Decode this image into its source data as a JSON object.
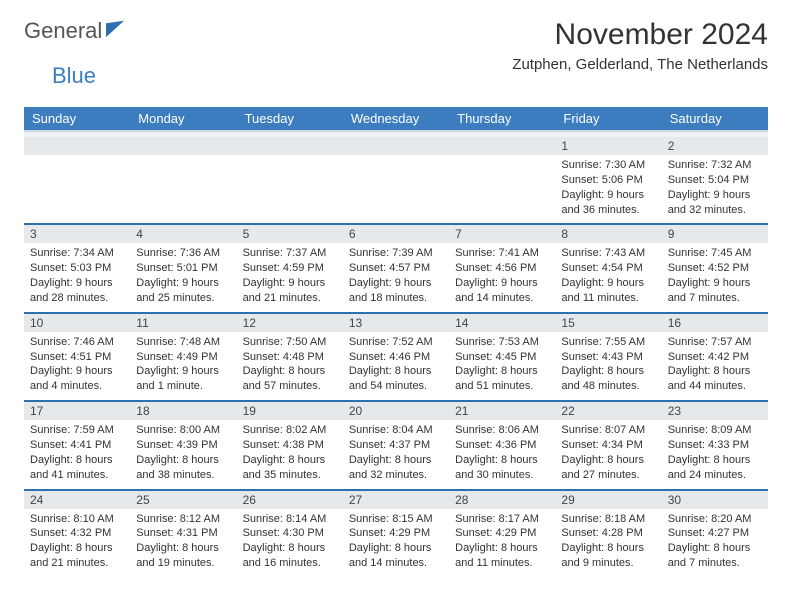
{
  "brand": {
    "part1": "General",
    "part2": "Blue"
  },
  "title": "November 2024",
  "location": "Zutphen, Gelderland, The Netherlands",
  "style": {
    "header_bg": "#3b7dbf",
    "header_fg": "#ffffff",
    "row_divider": "#2e6fb0",
    "daynum_bg": "#e6e9ec",
    "body_bg": "#ffffff",
    "text_color": "#333333",
    "title_fontsize": 30,
    "location_fontsize": 15,
    "daynum_fontsize": 12,
    "body_fontsize": 11,
    "col_header_fontsize": 13
  },
  "weekdays": [
    "Sunday",
    "Monday",
    "Tuesday",
    "Wednesday",
    "Thursday",
    "Friday",
    "Saturday"
  ],
  "weeks": [
    [
      {
        "n": "",
        "sunrise": "",
        "sunset": "",
        "daylight": ""
      },
      {
        "n": "",
        "sunrise": "",
        "sunset": "",
        "daylight": ""
      },
      {
        "n": "",
        "sunrise": "",
        "sunset": "",
        "daylight": ""
      },
      {
        "n": "",
        "sunrise": "",
        "sunset": "",
        "daylight": ""
      },
      {
        "n": "",
        "sunrise": "",
        "sunset": "",
        "daylight": ""
      },
      {
        "n": "1",
        "sunrise": "Sunrise: 7:30 AM",
        "sunset": "Sunset: 5:06 PM",
        "daylight": "Daylight: 9 hours and 36 minutes."
      },
      {
        "n": "2",
        "sunrise": "Sunrise: 7:32 AM",
        "sunset": "Sunset: 5:04 PM",
        "daylight": "Daylight: 9 hours and 32 minutes."
      }
    ],
    [
      {
        "n": "3",
        "sunrise": "Sunrise: 7:34 AM",
        "sunset": "Sunset: 5:03 PM",
        "daylight": "Daylight: 9 hours and 28 minutes."
      },
      {
        "n": "4",
        "sunrise": "Sunrise: 7:36 AM",
        "sunset": "Sunset: 5:01 PM",
        "daylight": "Daylight: 9 hours and 25 minutes."
      },
      {
        "n": "5",
        "sunrise": "Sunrise: 7:37 AM",
        "sunset": "Sunset: 4:59 PM",
        "daylight": "Daylight: 9 hours and 21 minutes."
      },
      {
        "n": "6",
        "sunrise": "Sunrise: 7:39 AM",
        "sunset": "Sunset: 4:57 PM",
        "daylight": "Daylight: 9 hours and 18 minutes."
      },
      {
        "n": "7",
        "sunrise": "Sunrise: 7:41 AM",
        "sunset": "Sunset: 4:56 PM",
        "daylight": "Daylight: 9 hours and 14 minutes."
      },
      {
        "n": "8",
        "sunrise": "Sunrise: 7:43 AM",
        "sunset": "Sunset: 4:54 PM",
        "daylight": "Daylight: 9 hours and 11 minutes."
      },
      {
        "n": "9",
        "sunrise": "Sunrise: 7:45 AM",
        "sunset": "Sunset: 4:52 PM",
        "daylight": "Daylight: 9 hours and 7 minutes."
      }
    ],
    [
      {
        "n": "10",
        "sunrise": "Sunrise: 7:46 AM",
        "sunset": "Sunset: 4:51 PM",
        "daylight": "Daylight: 9 hours and 4 minutes."
      },
      {
        "n": "11",
        "sunrise": "Sunrise: 7:48 AM",
        "sunset": "Sunset: 4:49 PM",
        "daylight": "Daylight: 9 hours and 1 minute."
      },
      {
        "n": "12",
        "sunrise": "Sunrise: 7:50 AM",
        "sunset": "Sunset: 4:48 PM",
        "daylight": "Daylight: 8 hours and 57 minutes."
      },
      {
        "n": "13",
        "sunrise": "Sunrise: 7:52 AM",
        "sunset": "Sunset: 4:46 PM",
        "daylight": "Daylight: 8 hours and 54 minutes."
      },
      {
        "n": "14",
        "sunrise": "Sunrise: 7:53 AM",
        "sunset": "Sunset: 4:45 PM",
        "daylight": "Daylight: 8 hours and 51 minutes."
      },
      {
        "n": "15",
        "sunrise": "Sunrise: 7:55 AM",
        "sunset": "Sunset: 4:43 PM",
        "daylight": "Daylight: 8 hours and 48 minutes."
      },
      {
        "n": "16",
        "sunrise": "Sunrise: 7:57 AM",
        "sunset": "Sunset: 4:42 PM",
        "daylight": "Daylight: 8 hours and 44 minutes."
      }
    ],
    [
      {
        "n": "17",
        "sunrise": "Sunrise: 7:59 AM",
        "sunset": "Sunset: 4:41 PM",
        "daylight": "Daylight: 8 hours and 41 minutes."
      },
      {
        "n": "18",
        "sunrise": "Sunrise: 8:00 AM",
        "sunset": "Sunset: 4:39 PM",
        "daylight": "Daylight: 8 hours and 38 minutes."
      },
      {
        "n": "19",
        "sunrise": "Sunrise: 8:02 AM",
        "sunset": "Sunset: 4:38 PM",
        "daylight": "Daylight: 8 hours and 35 minutes."
      },
      {
        "n": "20",
        "sunrise": "Sunrise: 8:04 AM",
        "sunset": "Sunset: 4:37 PM",
        "daylight": "Daylight: 8 hours and 32 minutes."
      },
      {
        "n": "21",
        "sunrise": "Sunrise: 8:06 AM",
        "sunset": "Sunset: 4:36 PM",
        "daylight": "Daylight: 8 hours and 30 minutes."
      },
      {
        "n": "22",
        "sunrise": "Sunrise: 8:07 AM",
        "sunset": "Sunset: 4:34 PM",
        "daylight": "Daylight: 8 hours and 27 minutes."
      },
      {
        "n": "23",
        "sunrise": "Sunrise: 8:09 AM",
        "sunset": "Sunset: 4:33 PM",
        "daylight": "Daylight: 8 hours and 24 minutes."
      }
    ],
    [
      {
        "n": "24",
        "sunrise": "Sunrise: 8:10 AM",
        "sunset": "Sunset: 4:32 PM",
        "daylight": "Daylight: 8 hours and 21 minutes."
      },
      {
        "n": "25",
        "sunrise": "Sunrise: 8:12 AM",
        "sunset": "Sunset: 4:31 PM",
        "daylight": "Daylight: 8 hours and 19 minutes."
      },
      {
        "n": "26",
        "sunrise": "Sunrise: 8:14 AM",
        "sunset": "Sunset: 4:30 PM",
        "daylight": "Daylight: 8 hours and 16 minutes."
      },
      {
        "n": "27",
        "sunrise": "Sunrise: 8:15 AM",
        "sunset": "Sunset: 4:29 PM",
        "daylight": "Daylight: 8 hours and 14 minutes."
      },
      {
        "n": "28",
        "sunrise": "Sunrise: 8:17 AM",
        "sunset": "Sunset: 4:29 PM",
        "daylight": "Daylight: 8 hours and 11 minutes."
      },
      {
        "n": "29",
        "sunrise": "Sunrise: 8:18 AM",
        "sunset": "Sunset: 4:28 PM",
        "daylight": "Daylight: 8 hours and 9 minutes."
      },
      {
        "n": "30",
        "sunrise": "Sunrise: 8:20 AM",
        "sunset": "Sunset: 4:27 PM",
        "daylight": "Daylight: 8 hours and 7 minutes."
      }
    ]
  ]
}
